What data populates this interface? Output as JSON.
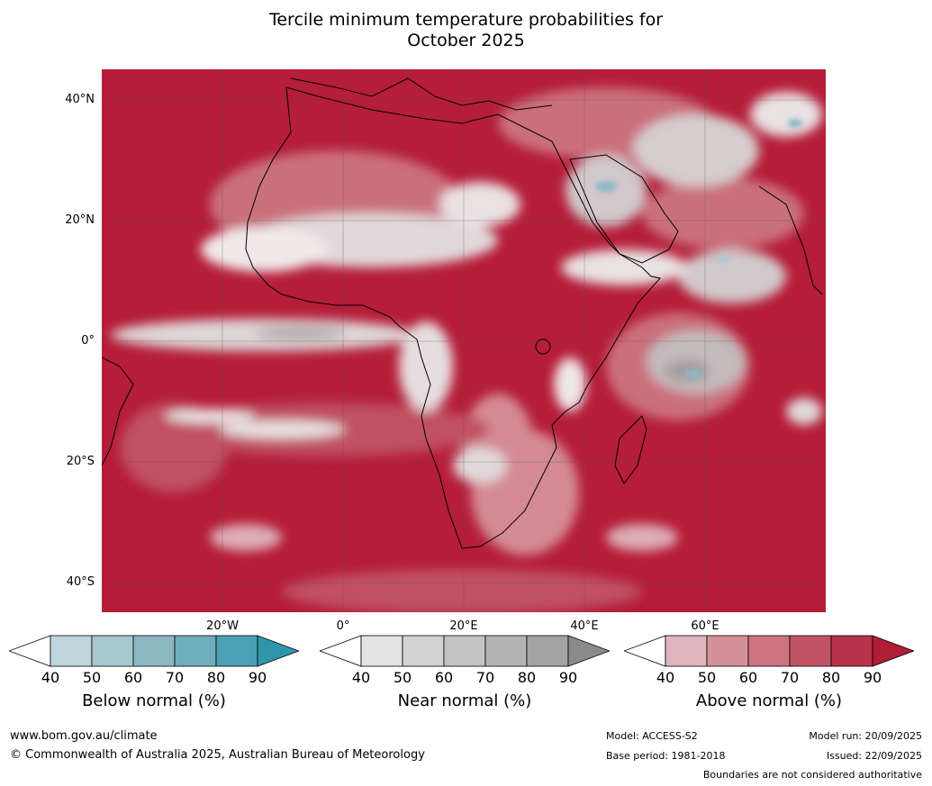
{
  "title": {
    "line1": "Tercile minimum temperature probabilities for",
    "line2": "October 2025"
  },
  "map": {
    "lat_labels": [
      "40°N",
      "20°N",
      "0°",
      "20°S",
      "40°S"
    ],
    "lon_labels": [
      "20°W",
      "0°",
      "20°E",
      "40°E",
      "60°E"
    ],
    "ocean_color": "#b51d38",
    "land_outline_color": "#000000",
    "border_color": "#808080"
  },
  "legends": [
    {
      "name": "Below normal (%)",
      "ticks": [
        "40",
        "50",
        "60",
        "70",
        "80",
        "90"
      ],
      "colors": [
        "#ffffff",
        "#bfd5dc",
        "#a8c8d0",
        "#8cb8c4",
        "#6faebd",
        "#4aa1b3",
        "#2e95ab"
      ]
    },
    {
      "name": "Near normal (%)",
      "ticks": [
        "40",
        "50",
        "60",
        "70",
        "80",
        "90"
      ],
      "colors": [
        "#ffffff",
        "#e3e3e3",
        "#d3d3d3",
        "#c4c4c4",
        "#b4b4b4",
        "#a3a3a3",
        "#8a8a8a"
      ]
    },
    {
      "name": "Above normal (%)",
      "ticks": [
        "40",
        "50",
        "60",
        "70",
        "80",
        "90"
      ],
      "colors": [
        "#ffffff",
        "#e0b5bd",
        "#d69099",
        "#cc7480",
        "#c15365",
        "#b7334b",
        "#b11c36"
      ]
    }
  ],
  "footer": {
    "url": "www.bom.gov.au/climate",
    "copyright": "© Commonwealth of Australia 2025, Australian Bureau of Meteorology",
    "model": "Model: ACCESS-S2",
    "base_period": "Base period: 1981-2018",
    "model_run": "Model run: 20/09/2025",
    "issued": "Issued: 22/09/2025",
    "disclaimer": "Boundaries are not considered authoritative"
  }
}
